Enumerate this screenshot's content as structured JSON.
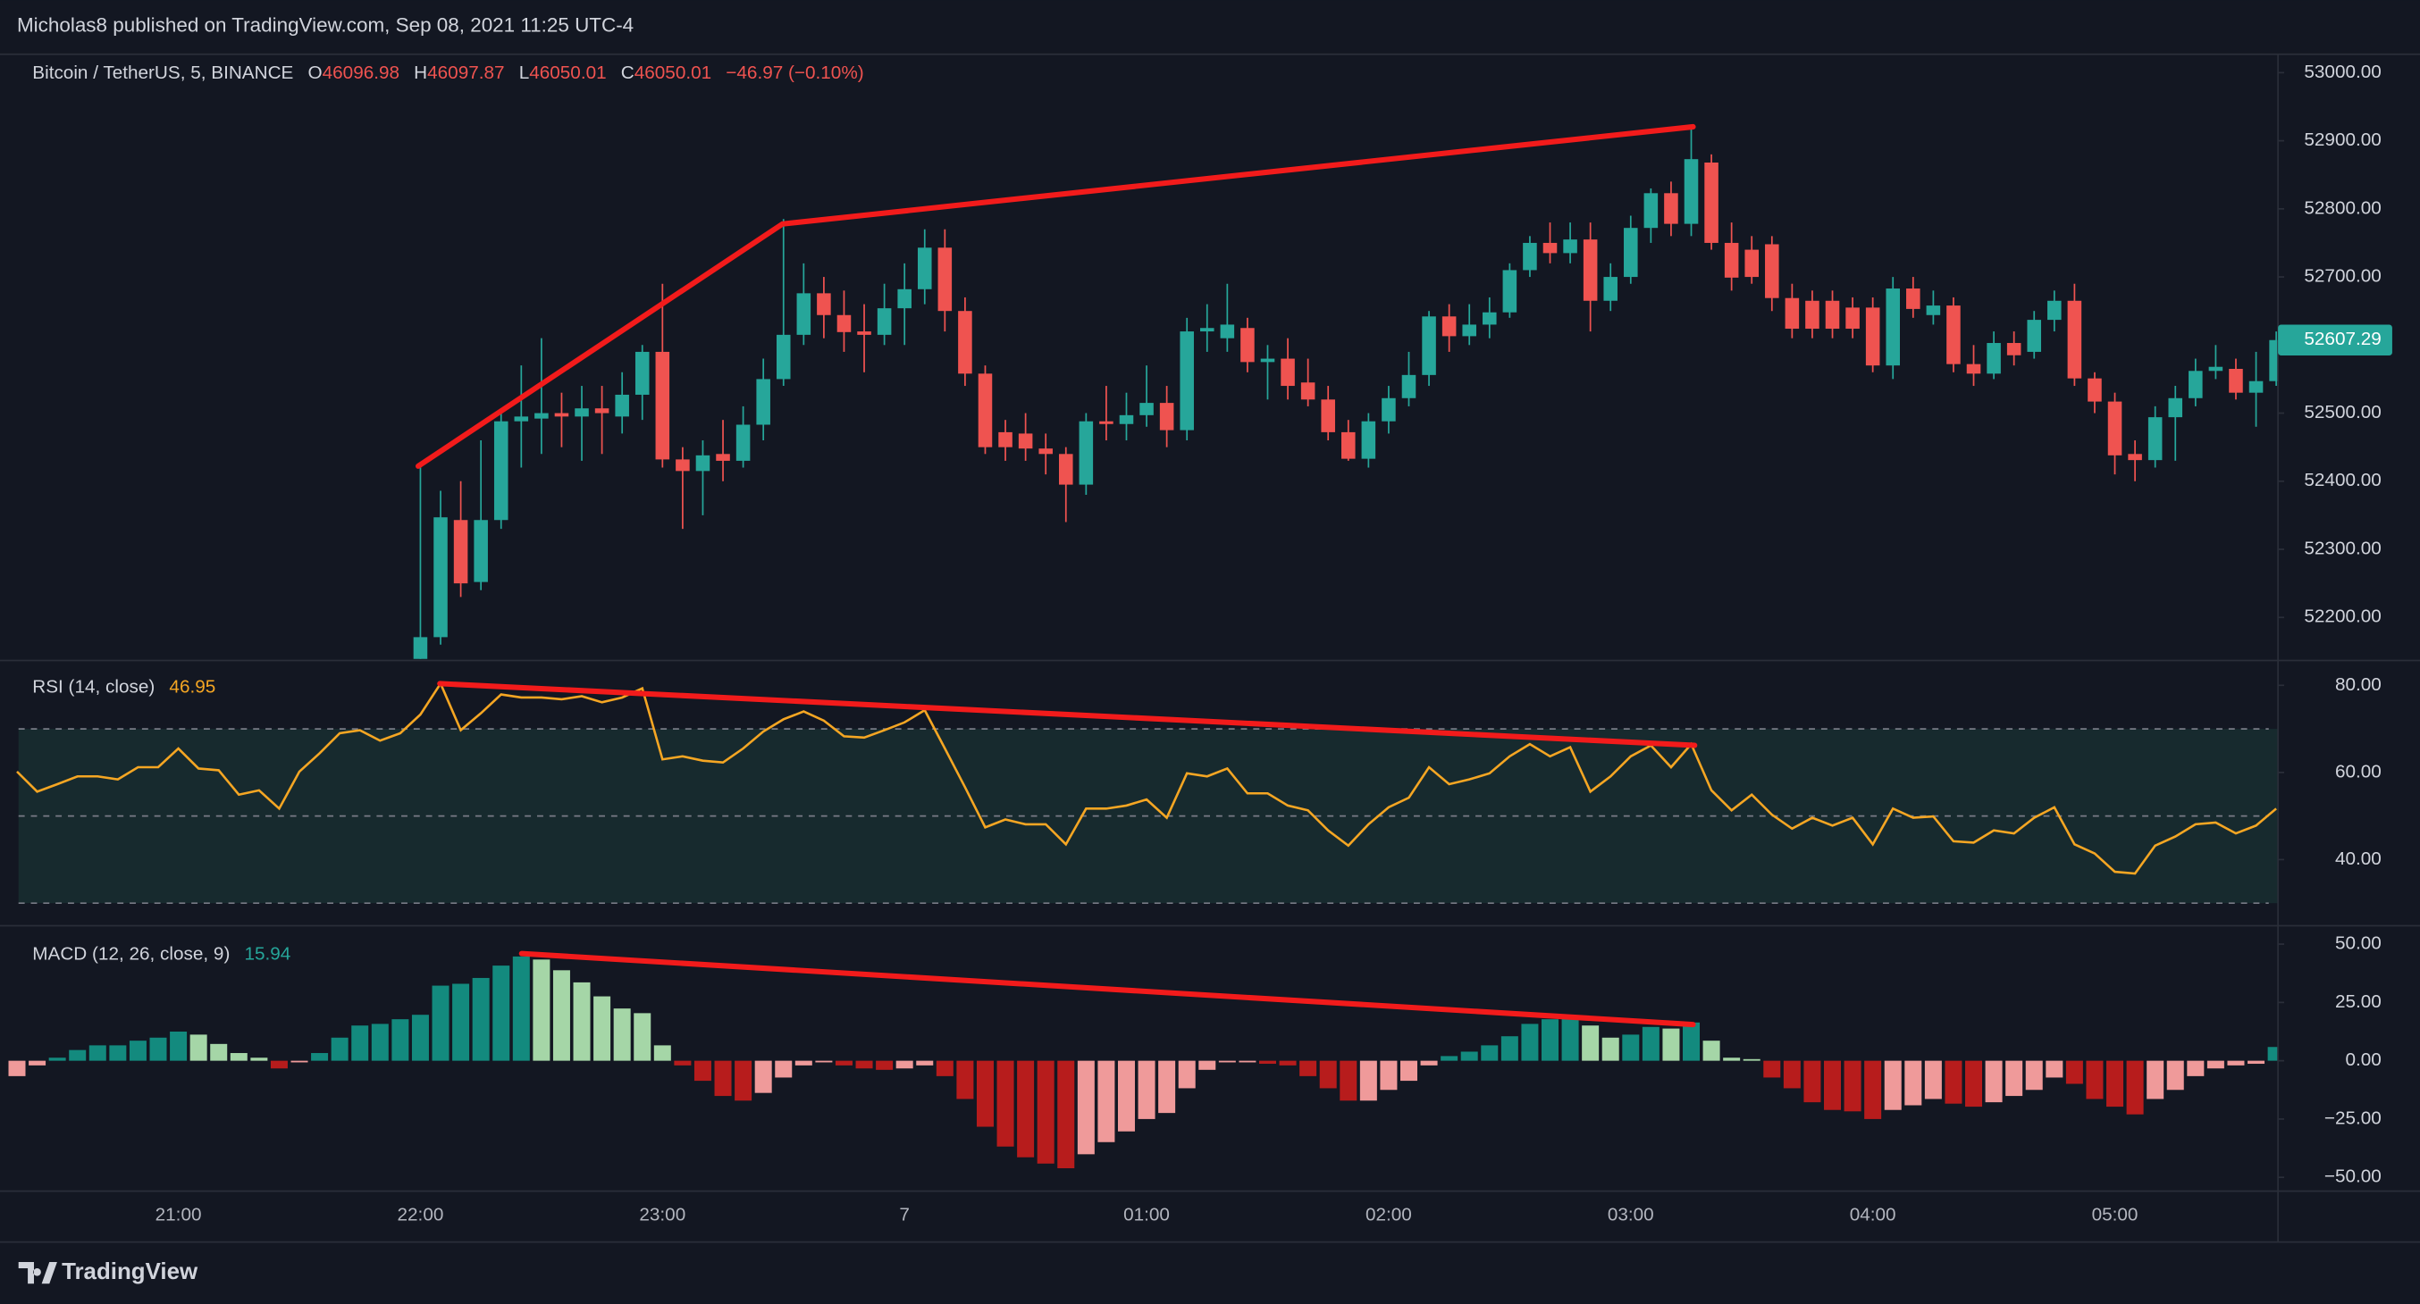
{
  "header": {
    "published": "Micholas8 published on TradingView.com, Sep 08, 2021 11:25 UTC-4"
  },
  "footer": {
    "brand": "TradingView"
  },
  "x_axis": {
    "categories": [
      null,
      null,
      null,
      null,
      null,
      null,
      null,
      null,
      "21:00",
      null,
      null,
      null,
      null,
      null,
      null,
      null,
      null,
      null,
      null,
      null,
      "22:00",
      null,
      null,
      null,
      null,
      null,
      null,
      null,
      null,
      null,
      null,
      null,
      "23:00",
      null,
      null,
      null,
      null,
      null,
      null,
      null,
      null,
      null,
      null,
      null,
      "7",
      null,
      null,
      null,
      null,
      null,
      null,
      null,
      null,
      null,
      null,
      null,
      "01:00",
      null,
      null,
      null,
      null,
      null,
      null,
      null,
      null,
      null,
      null,
      null,
      "02:00",
      null,
      null,
      null,
      null,
      null,
      null,
      null,
      null,
      null,
      null,
      null,
      "03:00",
      null,
      null,
      null,
      null,
      null,
      null,
      null,
      null,
      null,
      null,
      null,
      "04:00",
      null,
      null,
      null,
      null,
      null,
      null,
      null,
      null,
      null,
      null,
      null,
      "05:00",
      null,
      null,
      null,
      null,
      null,
      null,
      null,
      null
    ]
  },
  "chart_data": [
    {
      "type": "candlestick",
      "title": "Bitcoin / TetherUS, 5, BINANCE",
      "legend": [
        {
          "label": "O",
          "value": "46096.98"
        },
        {
          "label": "H",
          "value": "46097.87"
        },
        {
          "label": "L",
          "value": "46050.01"
        },
        {
          "label": "C",
          "value": "46050.01"
        }
      ],
      "change": "−46.97 (−0.10%)",
      "open": [
        null,
        null,
        null,
        null,
        null,
        null,
        null,
        null,
        null,
        null,
        null,
        null,
        null,
        null,
        null,
        null,
        null,
        null,
        null,
        null,
        52120,
        52171,
        52343,
        52252,
        52343,
        52488,
        52492,
        52500,
        52495,
        52507,
        52495,
        52527,
        52590,
        52432,
        52415,
        52440,
        52430,
        52483,
        52550,
        52615,
        52676,
        52644,
        52620,
        52615,
        52654,
        52682,
        52743,
        52650,
        52558,
        52472,
        52470,
        52448,
        52440,
        52395,
        52488,
        52484,
        52497,
        52515,
        52475,
        52620,
        52610,
        52625,
        52575,
        52580,
        52545,
        52520,
        52472,
        52433,
        52488,
        52522,
        52556,
        52642,
        52613,
        52630,
        52648,
        52710,
        52750,
        52735,
        52755,
        52665,
        52700,
        52772,
        52823,
        52778,
        52868,
        52750,
        52740,
        52748,
        52669,
        52665,
        52665,
        52655,
        52655,
        52570,
        52683,
        52644,
        52658,
        52572,
        52558,
        52603,
        52590,
        52637,
        52665,
        52551,
        52517,
        52440,
        52431,
        52494,
        52522,
        52562,
        52565,
        52530,
        52547
      ],
      "high": [
        null,
        null,
        null,
        null,
        null,
        null,
        null,
        null,
        null,
        null,
        null,
        null,
        null,
        null,
        null,
        null,
        null,
        null,
        null,
        null,
        52427,
        52386,
        52400,
        52460,
        52500,
        52570,
        52610,
        52530,
        52540,
        52540,
        52560,
        52600,
        52690,
        52450,
        52460,
        52490,
        52510,
        52580,
        52785,
        52720,
        52700,
        52680,
        52660,
        52690,
        52720,
        52770,
        52770,
        52670,
        52570,
        52490,
        52500,
        52470,
        52450,
        52500,
        52540,
        52530,
        52570,
        52540,
        52640,
        52660,
        52690,
        52640,
        52600,
        52610,
        52580,
        52540,
        52490,
        52500,
        52540,
        52590,
        52650,
        52660,
        52660,
        52670,
        52720,
        52760,
        52780,
        52780,
        52780,
        52720,
        52790,
        52830,
        52840,
        52920,
        52880,
        52780,
        52760,
        52760,
        52690,
        52680,
        52680,
        52670,
        52670,
        52700,
        52700,
        52680,
        52670,
        52600,
        52620,
        52620,
        52650,
        52680,
        52690,
        52560,
        52530,
        52460,
        52510,
        52540,
        52580,
        52600,
        52580,
        52590,
        52620
      ],
      "low": [
        null,
        null,
        null,
        null,
        null,
        null,
        null,
        null,
        null,
        null,
        null,
        null,
        null,
        null,
        null,
        null,
        null,
        null,
        null,
        null,
        52100,
        52160,
        52230,
        52240,
        52330,
        52420,
        52440,
        52450,
        52430,
        52440,
        52470,
        52490,
        52420,
        52330,
        52350,
        52400,
        52420,
        52460,
        52540,
        52600,
        52610,
        52590,
        52560,
        52600,
        52600,
        52660,
        52620,
        52540,
        52440,
        52430,
        52430,
        52410,
        52340,
        52380,
        52460,
        52460,
        52480,
        52450,
        52460,
        52590,
        52590,
        52560,
        52520,
        52520,
        52510,
        52460,
        52430,
        52420,
        52470,
        52510,
        52540,
        52590,
        52600,
        52610,
        52640,
        52700,
        52720,
        52720,
        52620,
        52650,
        52690,
        52750,
        52760,
        52760,
        52740,
        52680,
        52690,
        52650,
        52610,
        52610,
        52610,
        52610,
        52560,
        52550,
        52640,
        52630,
        52560,
        52540,
        52550,
        52570,
        52580,
        52620,
        52540,
        52500,
        52410,
        52400,
        52420,
        52430,
        52510,
        52550,
        52520,
        52480,
        52540
      ],
      "close": [
        null,
        null,
        null,
        null,
        null,
        null,
        null,
        null,
        null,
        null,
        null,
        null,
        null,
        null,
        null,
        null,
        null,
        null,
        null,
        null,
        52171,
        52347,
        52250,
        52343,
        52488,
        52495,
        52500,
        52495,
        52507,
        52500,
        52527,
        52590,
        52432,
        52415,
        52438,
        52430,
        52483,
        52550,
        52615,
        52676,
        52644,
        52619,
        52615,
        52654,
        52682,
        52743,
        52650,
        52558,
        52450,
        52450,
        52448,
        52440,
        52395,
        52488,
        52484,
        52497,
        52515,
        52475,
        52620,
        52625,
        52630,
        52575,
        52580,
        52540,
        52520,
        52472,
        52433,
        52488,
        52522,
        52556,
        52642,
        52613,
        52630,
        52648,
        52710,
        52750,
        52735,
        52755,
        52665,
        52700,
        52772,
        52823,
        52778,
        52873,
        52750,
        52699,
        52700,
        52669,
        52624,
        52624,
        52624,
        52624,
        52570,
        52683,
        52653,
        52658,
        52572,
        52558,
        52603,
        52585,
        52637,
        52665,
        52551,
        52517,
        52438,
        52431,
        52494,
        52522,
        52562,
        52568,
        52530,
        52547,
        52607.29
      ],
      "up_color": "#26a69a",
      "down_color": "#ef5350",
      "ylim": [
        52139,
        53027
      ],
      "yticks": [
        {
          "value": 52200,
          "label": "52200.00"
        },
        {
          "value": 52300,
          "label": "52300.00"
        },
        {
          "value": 52400,
          "label": "52400.00"
        },
        {
          "value": 52500,
          "label": "52500.00"
        },
        {
          "value": 52600,
          "label": "52600.00"
        },
        {
          "value": 52700,
          "label": "52700.00"
        },
        {
          "value": 52800,
          "label": "52800.00"
        },
        {
          "value": 52900,
          "label": "52900.00"
        },
        {
          "value": 53000,
          "label": "53000.00"
        }
      ]
    },
    {
      "type": "line",
      "title": "RSI (14, close)",
      "legend_value": 46.95,
      "color": "#f5a623",
      "levels": [
        70,
        50,
        30
      ],
      "band_color": "#172a2e",
      "values": [
        60.2,
        55.6,
        57.3,
        59.1,
        59.1,
        58.4,
        61.2,
        61.2,
        65.5,
        60.9,
        60.5,
        54.9,
        55.9,
        51.7,
        60.2,
        64.4,
        69.0,
        69.7,
        67.3,
        69.0,
        73.3,
        80.4,
        69.7,
        73.6,
        77.9,
        77.2,
        77.2,
        76.8,
        77.5,
        76.1,
        77.2,
        79.3,
        63.0,
        63.7,
        62.7,
        62.3,
        65.5,
        69.4,
        72.2,
        74.0,
        71.9,
        68.3,
        68.0,
        69.7,
        71.5,
        74.3,
        65.5,
        56.6,
        47.4,
        49.2,
        48.1,
        48.1,
        43.5,
        51.7,
        51.7,
        52.4,
        53.8,
        49.6,
        59.8,
        59.1,
        60.9,
        55.2,
        55.2,
        52.4,
        51.3,
        46.7,
        43.2,
        48.1,
        52.0,
        54.2,
        61.2,
        57.3,
        58.4,
        59.8,
        63.7,
        66.5,
        63.7,
        65.8,
        55.6,
        59.1,
        63.7,
        66.2,
        61.2,
        66.5,
        55.9,
        51.3,
        54.9,
        50.3,
        47.1,
        49.6,
        47.8,
        49.6,
        43.5,
        51.7,
        49.6,
        49.9,
        44.2,
        43.9,
        46.7,
        46.0,
        49.6,
        52.0,
        43.5,
        41.4,
        37.2,
        36.8,
        43.2,
        45.3,
        48.1,
        48.5,
        46.0,
        47.8,
        51.7
      ],
      "ylim": [
        24.8,
        85.7
      ],
      "yticks": [
        {
          "value": 40,
          "label": "40.00"
        },
        {
          "value": 60,
          "label": "60.00"
        },
        {
          "value": 80,
          "label": "80.00"
        }
      ]
    },
    {
      "type": "histogram",
      "title": "MACD (12, 26, close, 9)",
      "legend_value": 15.94,
      "colors": {
        "grow_above": "#138a7e",
        "fall_above": "#a5d6a7",
        "grow_below": "#ef9a9a",
        "fall_below": "#b71c1c"
      },
      "values": [
        -6.6,
        -2,
        1.3,
        4.6,
        6.6,
        6.6,
        8.6,
        9.9,
        12.5,
        11.2,
        7.2,
        3.3,
        1.3,
        -3.3,
        -0.7,
        3.3,
        9.9,
        15.1,
        15.8,
        17.8,
        19.7,
        32.2,
        33.0,
        35.5,
        40.8,
        44.7,
        43.4,
        38.8,
        33.6,
        27.6,
        22.4,
        20.4,
        6.6,
        -2,
        -8.6,
        -15.1,
        -17.1,
        -13.8,
        -7.2,
        -2,
        -0.7,
        -2,
        -3.3,
        -3.9,
        -3.3,
        -2,
        -6.6,
        -16.4,
        -28.3,
        -36.8,
        -41.4,
        -44.1,
        -46.1,
        -40.1,
        -34.9,
        -30.3,
        -25.0,
        -22.4,
        -11.8,
        -3.9,
        -0.7,
        -0.7,
        -1.3,
        -2,
        -6.6,
        -11.8,
        -17.1,
        -17.1,
        -12.5,
        -8.6,
        -2,
        2,
        3.9,
        6.6,
        10.5,
        15.8,
        17.8,
        19.1,
        15.1,
        9.9,
        11.2,
        14.5,
        13.8,
        16.4,
        8.6,
        1.3,
        0.7,
        -7.2,
        -11.8,
        -17.8,
        -21.1,
        -21.7,
        -25.0,
        -21.1,
        -19.1,
        -16.4,
        -18.4,
        -19.7,
        -17.8,
        -15.1,
        -12.5,
        -7.2,
        -9.9,
        -16.4,
        -19.7,
        -23.0,
        -16.4,
        -12.5,
        -6.6,
        -3.3,
        -2,
        -1.3,
        5.9
      ],
      "ylim": [
        -55.9,
        57.2
      ],
      "yticks": [
        {
          "value": -50,
          "label": "−50.00"
        },
        {
          "value": -25,
          "label": "−25.00"
        },
        {
          "value": 0,
          "label": "0.00"
        },
        {
          "value": 25,
          "label": "25.00"
        },
        {
          "value": 50,
          "label": "50.00"
        }
      ]
    }
  ]
}
